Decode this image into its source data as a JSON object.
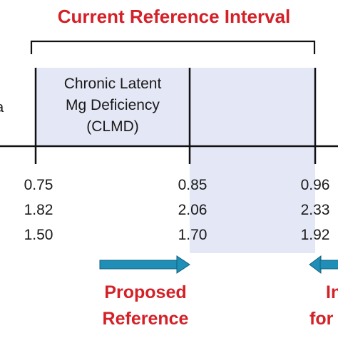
{
  "title": "Current Reference Interval",
  "edge_letter": "a",
  "clmd_box": {
    "line1": "Chronic Latent",
    "line2": "Mg Deficiency",
    "line3": "(CLMD)"
  },
  "columns": [
    {
      "values": [
        "0.75",
        "1.82",
        "1.50"
      ]
    },
    {
      "values": [
        "0.85",
        "2.06",
        "1.70"
      ]
    },
    {
      "values": [
        "0.96",
        "2.33",
        "1.92"
      ]
    }
  ],
  "proposed_label": {
    "line1": "Proposed",
    "line2": "Reference"
  },
  "right_label": {
    "line1": "In",
    "line2": "for"
  },
  "colors": {
    "title_red": "#d42027",
    "shade": "#e4e7f5",
    "arrow": "#1f8fb8",
    "line": "#111111"
  }
}
